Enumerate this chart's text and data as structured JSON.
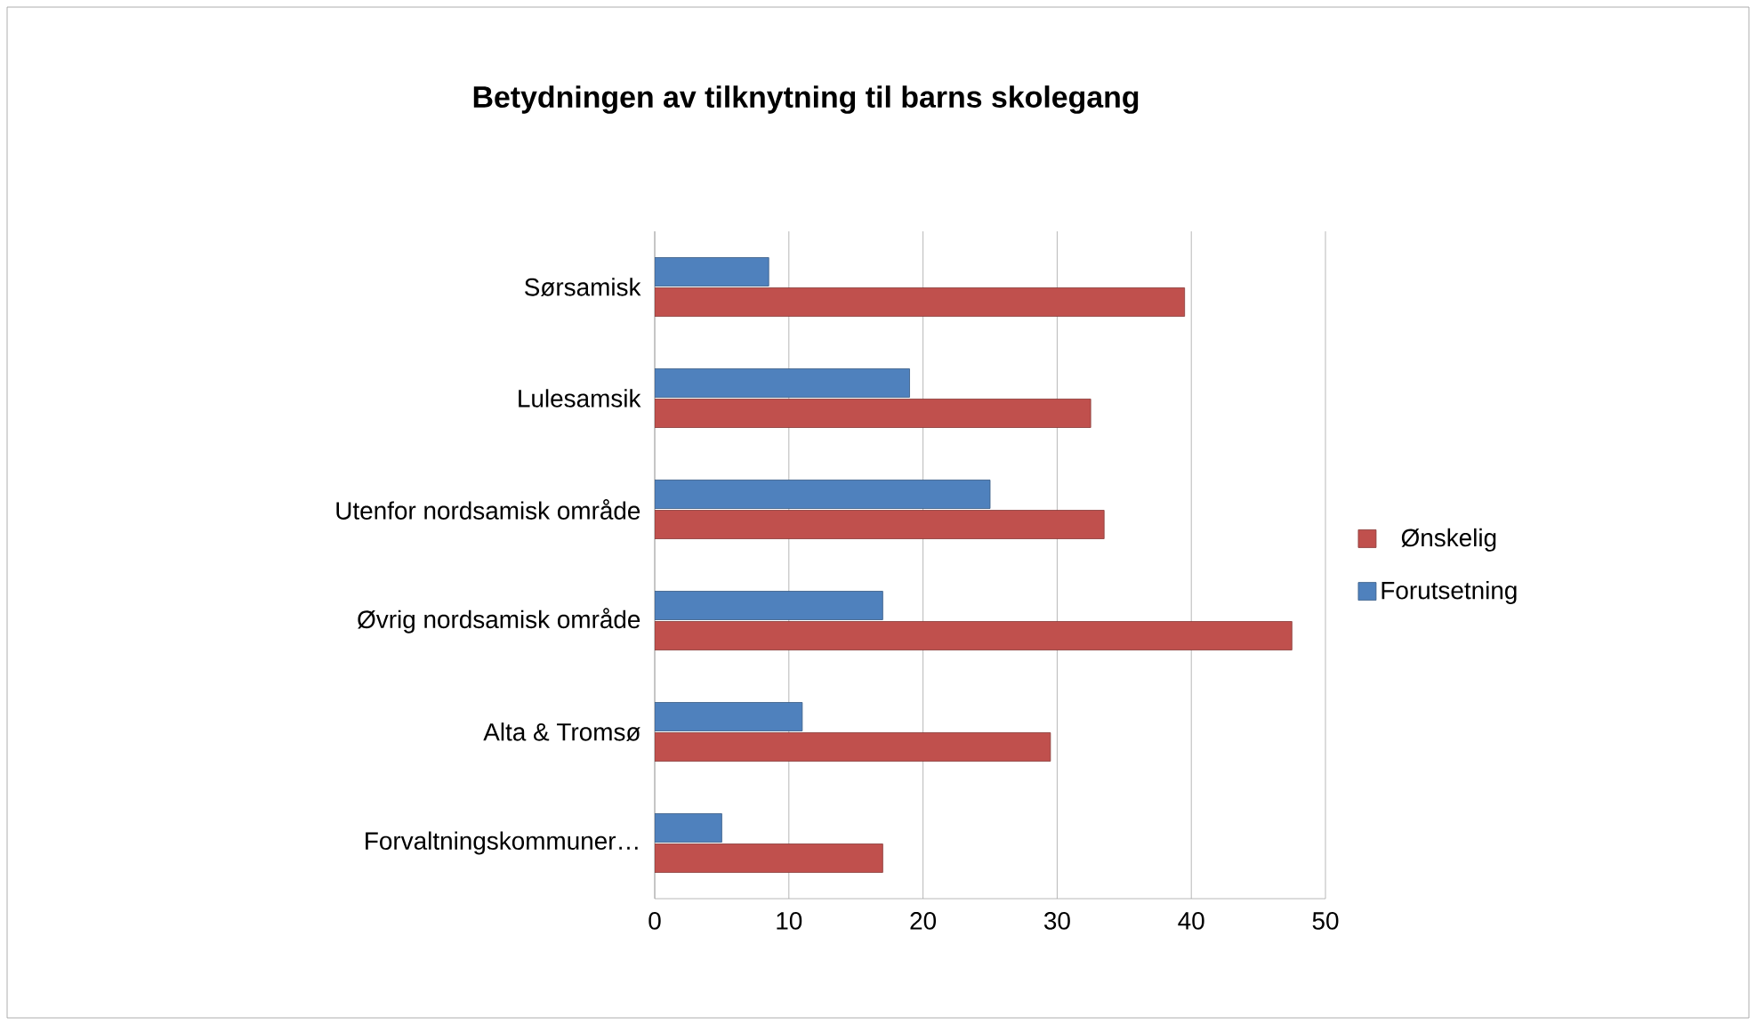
{
  "chart_data": {
    "type": "bar",
    "orientation": "horizontal",
    "title": "Betydningen av tilknytning til barns skolegang",
    "categories": [
      "Sørsamisk",
      "Lulesamsik",
      "Utenfor nordsamisk område",
      "Øvrig nordsamisk område",
      "Alta & Tromsø",
      "Forvaltningskommuner…"
    ],
    "series": [
      {
        "name": "Ønskelig",
        "color": "#c0504d",
        "values": [
          39.5,
          32.5,
          33.5,
          47.5,
          29.5,
          17
        ]
      },
      {
        "name": "Forutsetning",
        "color": "#4f81bd",
        "values": [
          8.5,
          19,
          25,
          17,
          11,
          5
        ]
      }
    ],
    "xlim": [
      0,
      50
    ],
    "xticks": [
      0,
      10,
      20,
      30,
      40,
      50
    ],
    "grid": "x",
    "legend": "right"
  }
}
